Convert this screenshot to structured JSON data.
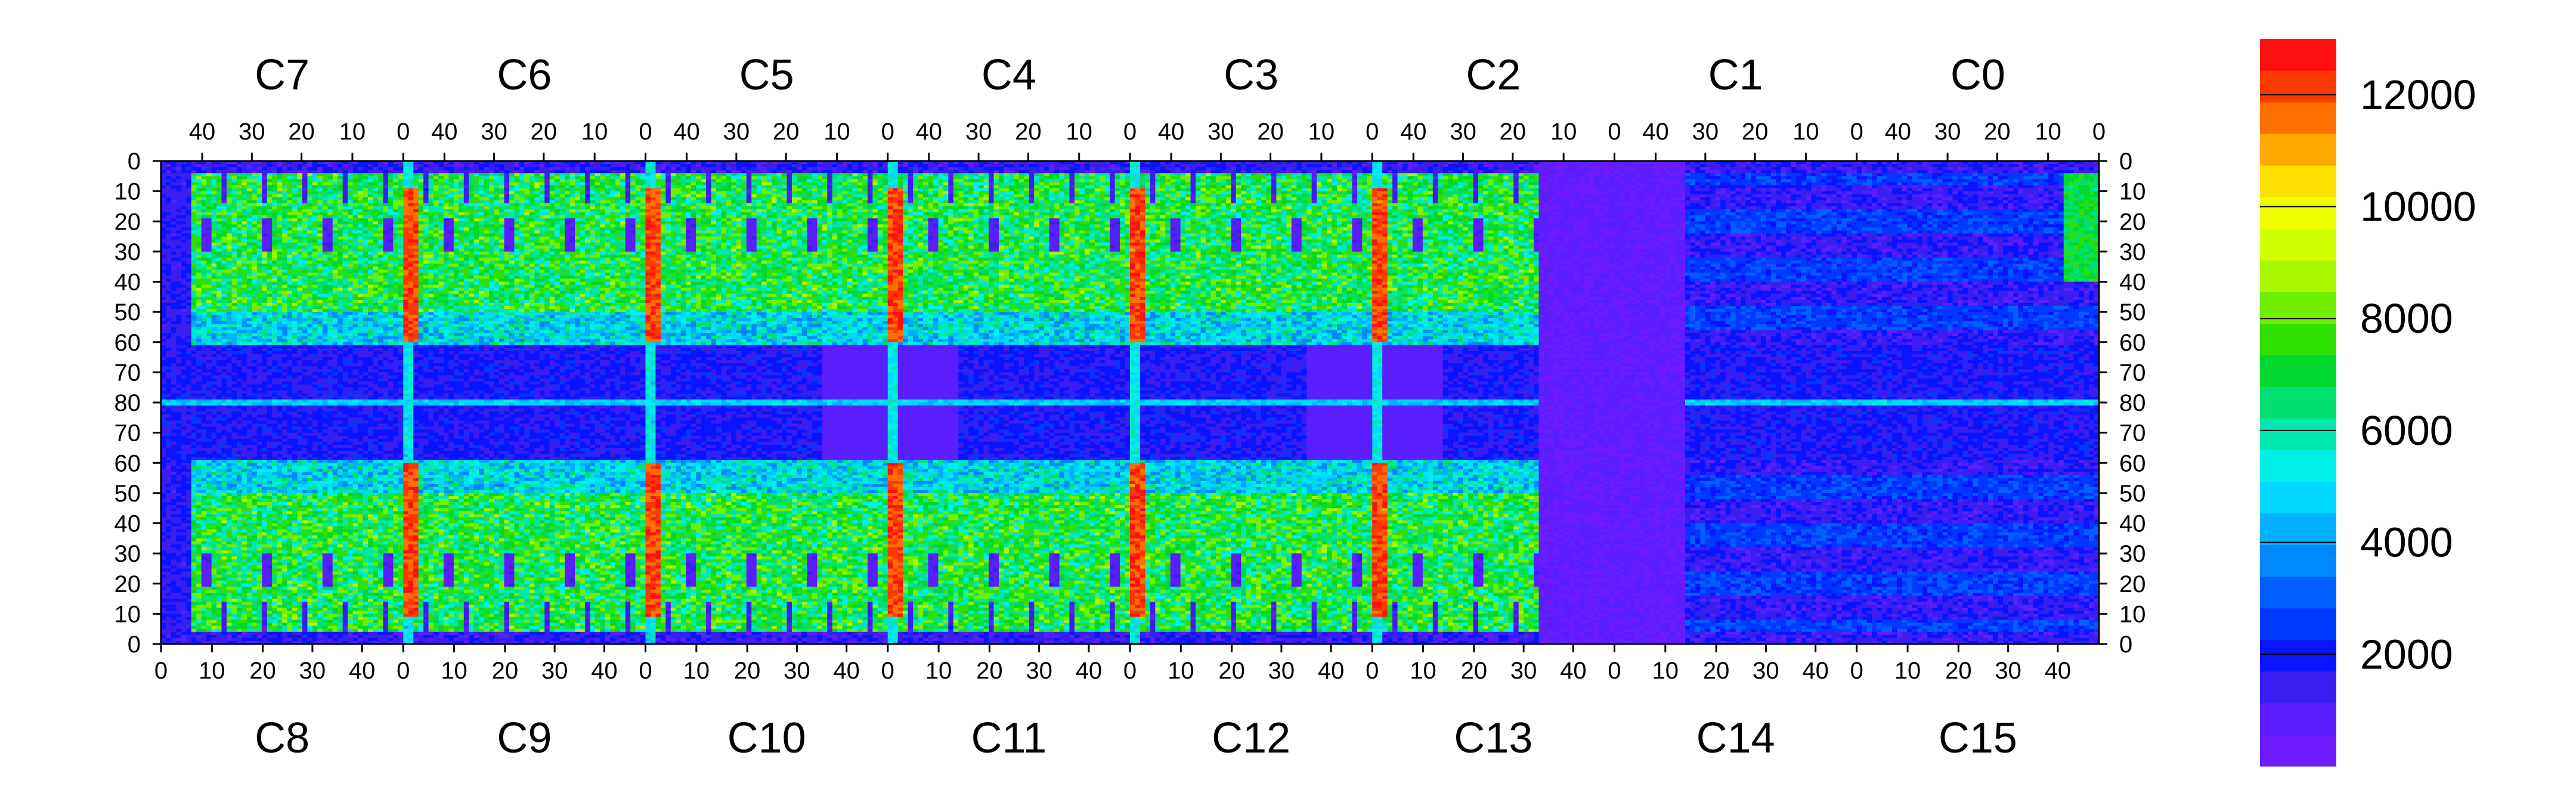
{
  "chart_data": {
    "type": "heatmap",
    "title": "",
    "colorbar": {
      "range": [
        0,
        13000
      ],
      "tick_labels": [
        "2000",
        "4000",
        "6000",
        "8000",
        "10000",
        "12000"
      ],
      "tick_values": [
        2000,
        4000,
        6000,
        8000,
        10000,
        12000
      ],
      "colors": [
        "#6e1cff",
        "#5a1eff",
        "#3a1ef0",
        "#0a14ff",
        "#0038ff",
        "#0060ff",
        "#0088ff",
        "#00b0ff",
        "#00d8ff",
        "#00f0e8",
        "#00e8b0",
        "#00e070",
        "#00d830",
        "#30e000",
        "#70f000",
        "#a8f800",
        "#d0ff00",
        "#f0ff00",
        "#ffe000",
        "#ffa800",
        "#ff7000",
        "#ff3800",
        "#ff1010"
      ]
    },
    "top_chip_labels": [
      "C7",
      "C6",
      "C5",
      "C4",
      "C3",
      "C2",
      "C1",
      "C0"
    ],
    "bottom_chip_labels": [
      "C8",
      "C9",
      "C10",
      "C11",
      "C12",
      "C13",
      "C14",
      "C15"
    ],
    "top_x_ticks": [
      "40",
      "30",
      "20",
      "10",
      "0"
    ],
    "bottom_x_ticks": [
      "0",
      "10",
      "20",
      "30",
      "40"
    ],
    "y_ticks": [
      "0",
      "10",
      "20",
      "30",
      "40",
      "50",
      "60",
      "70",
      "80",
      "70",
      "60",
      "50",
      "40",
      "30",
      "20",
      "10",
      "0"
    ],
    "grid": false,
    "description_values": {
      "dead_region_level": 300,
      "background_level": 1800,
      "sensitive_level": 6500,
      "hot_column_level": 12800
    }
  }
}
